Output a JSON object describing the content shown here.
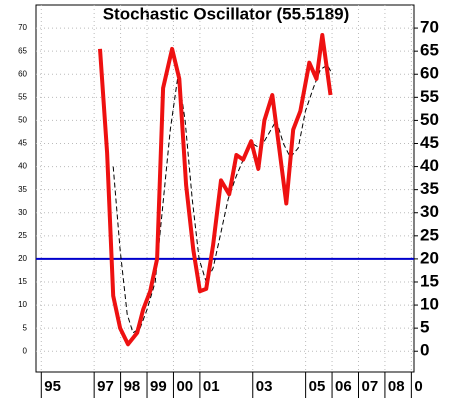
{
  "chart_data": {
    "type": "line",
    "title": "Stochastic Oscillator (55.5189)",
    "xlim": [
      1994.8,
      2009.1
    ],
    "ylim": [
      -4.5,
      75
    ],
    "xticks": [
      {
        "value": 1995,
        "label": "95"
      },
      {
        "value": 1997,
        "label": "97"
      },
      {
        "value": 1998,
        "label": "98"
      },
      {
        "value": 1999,
        "label": "99"
      },
      {
        "value": 2000,
        "label": "00"
      },
      {
        "value": 2001,
        "label": "01"
      },
      {
        "value": 2003,
        "label": "03"
      },
      {
        "value": 2005,
        "label": "05"
      },
      {
        "value": 2006,
        "label": "06"
      },
      {
        "value": 2007,
        "label": "07"
      },
      {
        "value": 2008,
        "label": "08"
      },
      {
        "value": 2009,
        "label": "0"
      }
    ],
    "yticks": [
      0,
      5,
      10,
      15,
      20,
      25,
      30,
      35,
      40,
      45,
      50,
      55,
      60,
      65,
      70
    ],
    "grid": true,
    "reference_line": {
      "value": 20,
      "color": "#0000cc"
    },
    "series": [
      {
        "color": "#ee1111",
        "width": 4,
        "dashed": false,
        "x": [
          1997.22,
          1997.49,
          1997.72,
          1997.98,
          1998.28,
          1998.63,
          1998.85,
          1999.12,
          1999.38,
          1999.61,
          1999.95,
          2000.22,
          2000.48,
          2000.75,
          2001.0,
          2001.24,
          2001.5,
          2001.8,
          2002.11,
          2002.38,
          2002.64,
          2002.94,
          2003.21,
          2003.44,
          2003.74,
          2004.0,
          2004.27,
          2004.53,
          2004.8,
          2005.14,
          2005.41,
          2005.63,
          2005.94
        ],
        "values": [
          65.5,
          43,
          12,
          5,
          1.5,
          4,
          9,
          13,
          20,
          57,
          65.5,
          59,
          36,
          22,
          13,
          13.5,
          23,
          37,
          34,
          42.5,
          41.5,
          45.5,
          39.5,
          50,
          55.5,
          44,
          32,
          48,
          52,
          62.5,
          59,
          68.5,
          55.5
        ]
      },
      {
        "color": "#000000",
        "width": 1,
        "dashed": true,
        "x": [
          1997.72,
          1997.98,
          1998.25,
          1998.47,
          1998.74,
          1999.0,
          1999.31,
          1999.57,
          1999.88,
          2000.18,
          2000.44,
          2000.71,
          2000.97,
          2001.24,
          2001.5,
          2001.77,
          2002.07,
          2002.38,
          2002.68,
          2002.98,
          2003.28,
          2003.59,
          2003.89,
          2004.16,
          2004.42,
          2004.72,
          2004.99,
          2005.29,
          2005.56,
          2005.82,
          2006.01
        ],
        "values": [
          40,
          22,
          8,
          4,
          5,
          9,
          15,
          30,
          48,
          60,
          50,
          33,
          20,
          15,
          18,
          25,
          33,
          38,
          42,
          45,
          44,
          47,
          50,
          45,
          42,
          44,
          52,
          57,
          61,
          62,
          60
        ]
      }
    ]
  }
}
